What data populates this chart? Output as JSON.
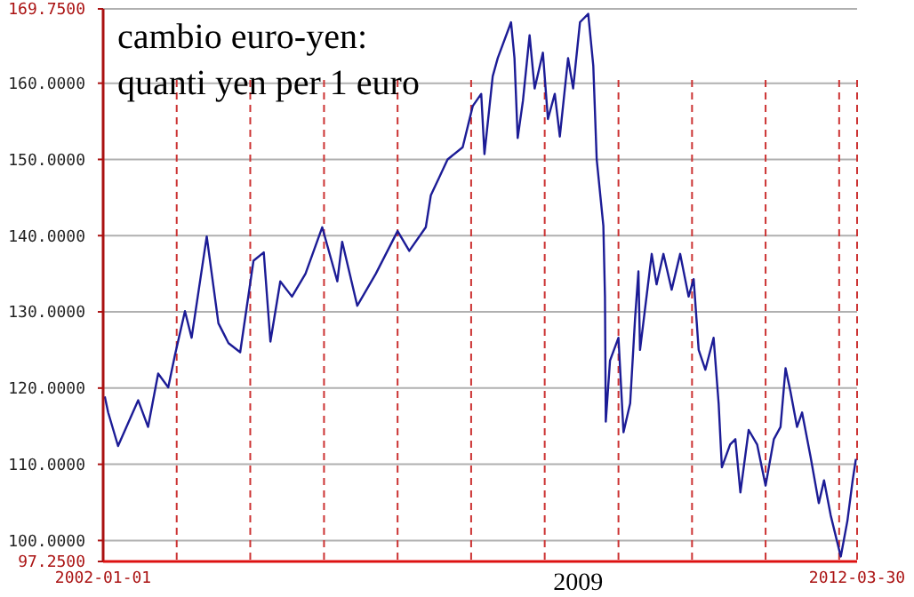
{
  "chart_data": {
    "type": "line",
    "title": "cambio euro-yen:",
    "subtitle": "quanti yen per 1 euro",
    "annotations": [
      "2009"
    ],
    "x": [
      "2002-01-09",
      "2002-01-26",
      "2002-03-16",
      "2002-06-24",
      "2002-08-12",
      "2002-10-01",
      "2002-11-20",
      "2002-12-23",
      "2003-02-11",
      "2003-03-16",
      "2003-05-30",
      "2003-07-27",
      "2003-09-15",
      "2003-11-12",
      "2004-01-17",
      "2004-03-08",
      "2004-04-10",
      "2004-05-29",
      "2004-07-26",
      "2004-10-01",
      "2004-12-23",
      "2005-03-08",
      "2005-04-01",
      "2005-06-15",
      "2005-09-15",
      "2006-01-01",
      "2006-02-28",
      "2006-05-21",
      "2006-06-15",
      "2006-07-26",
      "2006-09-06",
      "2006-11-20",
      "2007-01-09",
      "2007-02-20",
      "2007-03-08",
      "2007-04-18",
      "2007-05-13",
      "2007-07-18",
      "2007-08-04",
      "2007-08-20",
      "2007-09-15",
      "2007-10-18",
      "2007-11-12",
      "2007-12-23",
      "2008-01-17",
      "2008-02-20",
      "2008-03-16",
      "2008-04-26",
      "2008-05-21",
      "2008-06-24",
      "2008-08-04",
      "2008-08-29",
      "2008-09-15",
      "2008-10-18",
      "2008-10-26",
      "2008-10-30",
      "2008-11-20",
      "2009-01-01",
      "2009-01-26",
      "2009-02-28",
      "2009-03-24",
      "2009-04-10",
      "2009-04-18",
      "2009-06-15",
      "2009-07-09",
      "2009-08-12",
      "2009-09-22",
      "2009-11-03",
      "2009-12-15",
      "2010-01-09",
      "2010-02-03",
      "2010-03-08",
      "2010-04-18",
      "2010-05-13",
      "2010-05-29",
      "2010-07-09",
      "2010-08-04",
      "2010-08-29",
      "2010-10-09",
      "2010-11-20",
      "2011-01-01",
      "2011-02-11",
      "2011-03-16",
      "2011-04-10",
      "2011-05-04",
      "2011-06-06",
      "2011-07-01",
      "2011-08-12",
      "2011-09-22",
      "2011-10-18",
      "2011-11-20",
      "2012-01-09",
      "2012-02-11",
      "2012-03-08",
      "2012-03-24"
    ],
    "series": [
      {
        "color": "#1c1c96",
        "values": [
          118.9,
          116.8,
          112.4,
          118.4,
          114.9,
          121.9,
          120.1,
          124.3,
          130.1,
          126.6,
          139.9,
          128.5,
          125.9,
          124.7,
          136.7,
          137.8,
          126.1,
          134,
          132,
          135,
          141.1,
          134,
          139.2,
          130.8,
          135,
          140.6,
          138,
          141.1,
          145.3,
          147.6,
          150,
          151.6,
          157,
          158.6,
          150.7,
          160.9,
          163.3,
          168,
          163.3,
          152.8,
          157.7,
          166.3,
          159.3,
          164,
          155.3,
          158.6,
          153,
          163.3,
          159.3,
          168,
          169.1,
          162.3,
          150,
          141.3,
          132,
          115.6,
          123.6,
          126.6,
          114.2,
          118,
          129,
          135.3,
          125,
          137.6,
          133.6,
          137.6,
          132.9,
          137.6,
          132,
          134.3,
          125,
          122.4,
          126.6,
          118,
          109.6,
          112.6,
          113.3,
          106.3,
          114.5,
          112.6,
          107.2,
          113.3,
          114.9,
          122.6,
          119.6,
          114.9,
          116.8,
          111,
          104.9,
          107.9,
          103.3,
          97.9,
          102.6,
          107.9,
          110.7
        ]
      }
    ],
    "xlim": [
      "2002-01-01",
      "2012-03-30"
    ],
    "xticks": [
      {
        "value": "2002-01-01",
        "label": "2002-01-01"
      },
      {
        "value": "2003-01-01",
        "label": null
      },
      {
        "value": "2004-01-01",
        "label": null
      },
      {
        "value": "2005-01-01",
        "label": null
      },
      {
        "value": "2006-01-01",
        "label": null
      },
      {
        "value": "2007-01-01",
        "label": null
      },
      {
        "value": "2008-01-01",
        "label": null
      },
      {
        "value": "2009-01-01",
        "label": null
      },
      {
        "value": "2010-01-01",
        "label": null
      },
      {
        "value": "2011-01-01",
        "label": null
      },
      {
        "value": "2012-01-01",
        "label": null
      },
      {
        "value": "2012-03-30",
        "label": "2012-03-30"
      }
    ],
    "ylim": [
      97.25,
      169.75
    ],
    "yticks": [
      {
        "value": 97.25,
        "label": "97.2500"
      },
      {
        "value": 100,
        "label": "100.0000"
      },
      {
        "value": 110,
        "label": "110.0000"
      },
      {
        "value": 120,
        "label": "120.0000"
      },
      {
        "value": 130,
        "label": "130.0000"
      },
      {
        "value": 140,
        "label": "140.0000"
      },
      {
        "value": 150,
        "label": "150.0000"
      },
      {
        "value": 160,
        "label": "160.0000"
      },
      {
        "value": 169.75,
        "label": "169.7500"
      }
    ],
    "grid": true,
    "marker": "none",
    "line_style": "solid"
  }
}
